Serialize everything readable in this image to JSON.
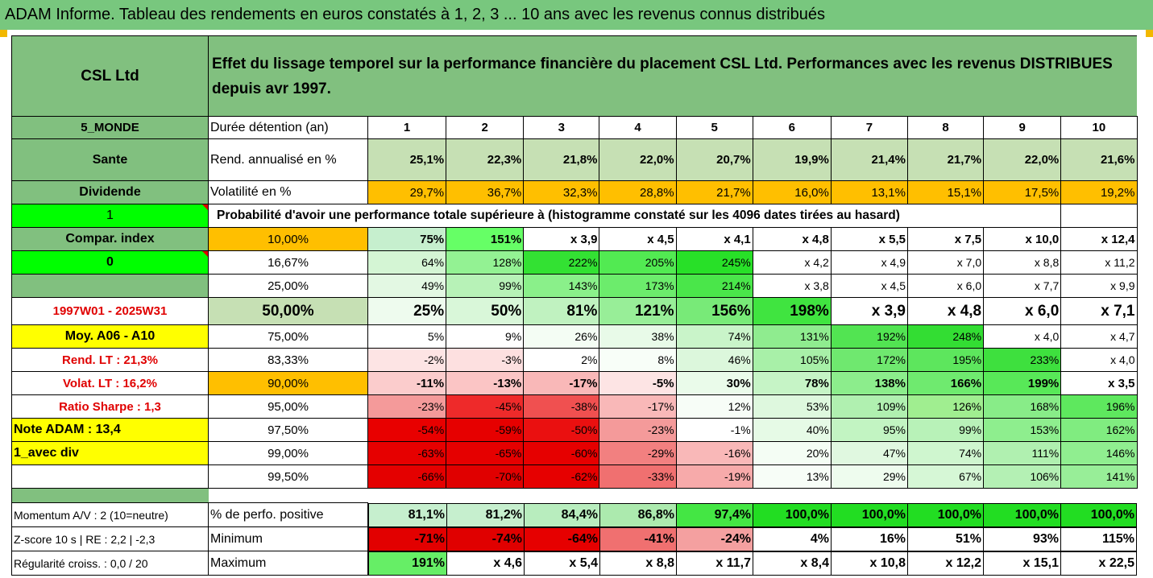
{
  "title": "ADAM Informe. Tableau des rendements en euros constatés à 1, 2, 3 ... 10 ans avec les revenus connus distribués",
  "company": "CSL Ltd",
  "description": "Effet du lissage temporel sur la performance financière du placement CSL Ltd. Performances avec les revenus DISTRIBUES depuis avr 1997.",
  "side": {
    "zone": "5_MONDE",
    "sector": "Sante",
    "type": "Dividende",
    "flag1": "1",
    "compar": "Compar. index",
    "flag0": "0",
    "period": "1997W01 - 2025W31",
    "moy": "Moy. A06 - A10",
    "rend_lt": "Rend. LT :   21,3%",
    "volat_lt": "Volat. LT :   16,2%",
    "sharpe": "Ratio Sharpe :    1,3",
    "note": "Note ADAM : 13,4",
    "mode": "1_avec div",
    "momentum": "Momentum A/V : 2 (10=neutre)",
    "zscore": "Z-score 10 s  |  RE : 2,2  |  -2,3",
    "regularite": "Régularité croiss. : 0,0 / 20"
  },
  "labels": {
    "duree": "Durée détention (an)",
    "rend": "Rend. annualisé en %",
    "vol": "Volatilité en %",
    "proba": "Probabilité d'avoir une performance totale supérieure à (histogramme constaté sur les 4096 dates tirées au hasard)",
    "pos": "% de perfo. positive",
    "min": "Minimum",
    "max": "Maximum"
  },
  "years": [
    "1",
    "2",
    "3",
    "4",
    "5",
    "6",
    "7",
    "8",
    "9",
    "10"
  ],
  "rend": [
    "25,1%",
    "22,3%",
    "21,8%",
    "22,0%",
    "20,7%",
    "19,9%",
    "21,4%",
    "21,7%",
    "22,0%",
    "21,6%"
  ],
  "vol": [
    "29,7%",
    "36,7%",
    "32,3%",
    "28,8%",
    "21,7%",
    "16,0%",
    "13,1%",
    "15,1%",
    "17,5%",
    "19,2%"
  ],
  "prob_rows": [
    {
      "p": "10,00%",
      "v": [
        "75%",
        "151%",
        "x 3,9",
        "x 4,5",
        "x 4,1",
        "x 4,8",
        "x 5,5",
        "x 7,5",
        "x 10,0",
        "x 12,4"
      ],
      "c": [
        "#c6efce",
        "#66ff66",
        "#ffffff",
        "#ffffff",
        "#ffffff",
        "#ffffff",
        "#ffffff",
        "#ffffff",
        "#ffffff",
        "#ffffff"
      ]
    },
    {
      "p": "16,67%",
      "v": [
        "64%",
        "128%",
        "222%",
        "205%",
        "245%",
        "x 4,2",
        "x 4,9",
        "x 7,0",
        "x 8,8",
        "x 11,2"
      ],
      "c": [
        "#d4f5d4",
        "#93f293",
        "#33e133",
        "#52ea52",
        "#28e028",
        "#ffffff",
        "#ffffff",
        "#ffffff",
        "#ffffff",
        "#ffffff"
      ]
    },
    {
      "p": "25,00%",
      "v": [
        "49%",
        "99%",
        "143%",
        "173%",
        "214%",
        "x 3,8",
        "x 4,5",
        "x 6,0",
        "x 7,7",
        "x 9,9"
      ],
      "c": [
        "#e3f8e3",
        "#b7f2b7",
        "#8af08a",
        "#6cec6c",
        "#4ae64a",
        "#ffffff",
        "#ffffff",
        "#ffffff",
        "#ffffff",
        "#ffffff"
      ]
    },
    {
      "p": "50,00%",
      "v": [
        "25%",
        "50%",
        "81%",
        "121%",
        "156%",
        "198%",
        "x 3,9",
        "x 4,8",
        "x 6,0",
        "x 7,1"
      ],
      "c": [
        "#eefbee",
        "#d9f7d9",
        "#c0f2c0",
        "#98ee98",
        "#78ea78",
        "#40e440",
        "#ffffff",
        "#ffffff",
        "#ffffff",
        "#ffffff"
      ]
    },
    {
      "p": "75,00%",
      "v": [
        "5%",
        "9%",
        "26%",
        "38%",
        "74%",
        "131%",
        "192%",
        "248%",
        "x 4,0",
        "x 4,7"
      ],
      "c": [
        "#ffffff",
        "#ffffff",
        "#f4fdf4",
        "#e8fae8",
        "#c9f4c9",
        "#8fec8f",
        "#52e452",
        "#33dd33",
        "#ffffff",
        "#ffffff"
      ]
    },
    {
      "p": "83,33%",
      "v": [
        "-2%",
        "-3%",
        "2%",
        "8%",
        "46%",
        "105%",
        "172%",
        "195%",
        "233%",
        "x 4,0"
      ],
      "c": [
        "#fde4e4",
        "#fde0e0",
        "#ffffff",
        "#f8fef8",
        "#dcf7dc",
        "#a8f0a8",
        "#6fe86f",
        "#5de65d",
        "#3ee03e",
        "#ffffff"
      ]
    },
    {
      "p": "90,00%",
      "v": [
        "-11%",
        "-13%",
        "-17%",
        "-5%",
        "30%",
        "78%",
        "138%",
        "166%",
        "199%",
        "x 3,5"
      ],
      "c": [
        "#fbcccc",
        "#fbc5c5",
        "#f9b8b8",
        "#fde4e4",
        "#eafbea",
        "#c6f4c6",
        "#8ced8c",
        "#6fea6f",
        "#58e858",
        "#ffffff"
      ]
    },
    {
      "p": "95,00%",
      "v": [
        "-23%",
        "-45%",
        "-38%",
        "-17%",
        "12%",
        "53%",
        "109%",
        "126%",
        "168%",
        "196%"
      ],
      "c": [
        "#f49a9a",
        "#ee2a2a",
        "#f05050",
        "#f9b8b8",
        "#f7fdf7",
        "#def8de",
        "#b0f0b0",
        "#a0ee90",
        "#88ec88",
        "#5ee85e"
      ]
    },
    {
      "p": "97,50%",
      "v": [
        "-54%",
        "-59%",
        "-50%",
        "-23%",
        "-1%",
        "40%",
        "95%",
        "99%",
        "153%",
        "162%"
      ],
      "c": [
        "#e80000",
        "#e60000",
        "#ea1010",
        "#f49a9a",
        "#ffffff",
        "#e6fae6",
        "#c2f4c2",
        "#b8f2b8",
        "#8eee8e",
        "#80ec80"
      ]
    },
    {
      "p": "99,00%",
      "v": [
        "-63%",
        "-65%",
        "-60%",
        "-29%",
        "-16%",
        "20%",
        "47%",
        "74%",
        "111%",
        "146%"
      ],
      "c": [
        "#e60000",
        "#e50000",
        "#e60000",
        "#f28080",
        "#f9b8b8",
        "#f4fdf4",
        "#e0f8e0",
        "#cff6cf",
        "#b0f0b0",
        "#90ee90"
      ]
    },
    {
      "p": "99,50%",
      "v": [
        "-66%",
        "-70%",
        "-62%",
        "-33%",
        "-19%",
        "13%",
        "29%",
        "67%",
        "106%",
        "141%"
      ],
      "c": [
        "#e40000",
        "#e00000",
        "#e60000",
        "#f07070",
        "#f7aaaa",
        "#f7fdf7",
        "#eefcee",
        "#d6f7d6",
        "#b4f0b4",
        "#98ee98"
      ]
    }
  ],
  "pos": [
    "81,1%",
    "81,2%",
    "84,4%",
    "86,8%",
    "97,4%",
    "100,0%",
    "100,0%",
    "100,0%",
    "100,0%",
    "100,0%"
  ],
  "pos_c": [
    "#c6efce",
    "#c6efce",
    "#b8edbe",
    "#aceaae",
    "#44e644",
    "#22dd22",
    "#22dd22",
    "#22dd22",
    "#22dd22",
    "#22dd22"
  ],
  "min": [
    "-71%",
    "-74%",
    "-64%",
    "-41%",
    "-24%",
    "4%",
    "16%",
    "51%",
    "93%",
    "115%"
  ],
  "min_c": [
    "#e20000",
    "#e00000",
    "#e60000",
    "#f07070",
    "#f4a0a0",
    "#ffffff",
    "#ffffff",
    "#ffffff",
    "#ffffff",
    "#ffffff"
  ],
  "max": [
    "191%",
    "x 4,6",
    "x 5,4",
    "x 8,8",
    "x 11,7",
    "x 8,4",
    "x 10,8",
    "x 12,2",
    "x 15,1",
    "x 22,5"
  ],
  "max_c": [
    "#66ee66",
    "#ffffff",
    "#ffffff",
    "#ffffff",
    "#ffffff",
    "#ffffff",
    "#ffffff",
    "#ffffff",
    "#ffffff",
    "#ffffff"
  ]
}
